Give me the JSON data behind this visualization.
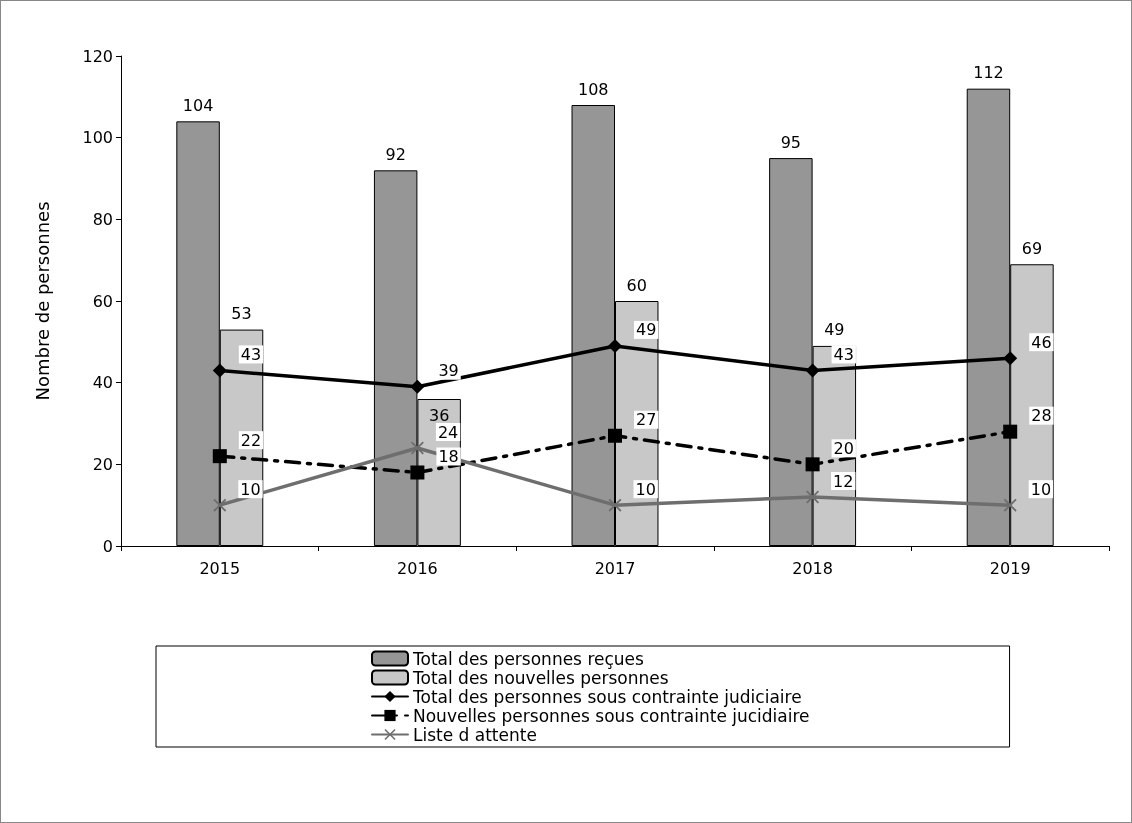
{
  "chart_data": {
    "type": "bar",
    "ylabel": "Nombre de personnes",
    "categories": [
      "2015",
      "2016",
      "2017",
      "2018",
      "2019"
    ],
    "series": [
      {
        "name": "Total des personnes reçues",
        "color": "#969696",
        "values": [
          104,
          92,
          108,
          95,
          112
        ]
      },
      {
        "name": "Total des nouvelles personnes",
        "color": "#c8c8c8",
        "values": [
          53,
          36,
          60,
          49,
          69
        ]
      },
      {
        "name": "Total des personnes sous contrainte judiciaire",
        "type": "line",
        "color": "#000000",
        "marker": "diamond",
        "line_style": "solid",
        "values": [
          43,
          39,
          49,
          43,
          46
        ]
      },
      {
        "name": "Nouvelles personnes sous contrainte jucidiaire",
        "type": "line",
        "color": "#000000",
        "marker": "square",
        "line_style": "dashdot",
        "values": [
          22,
          18,
          27,
          20,
          28
        ]
      },
      {
        "name": "Liste d attente",
        "type": "line",
        "color": "#6e6e6e",
        "marker": "cross",
        "line_style": "solid",
        "values": [
          10,
          24,
          10,
          12,
          10
        ]
      }
    ],
    "ylim": [
      0,
      120
    ],
    "yticks": [
      0,
      20,
      40,
      60,
      80,
      100,
      120
    ],
    "grid": false,
    "legend": "bottom",
    "data_labels": true
  }
}
